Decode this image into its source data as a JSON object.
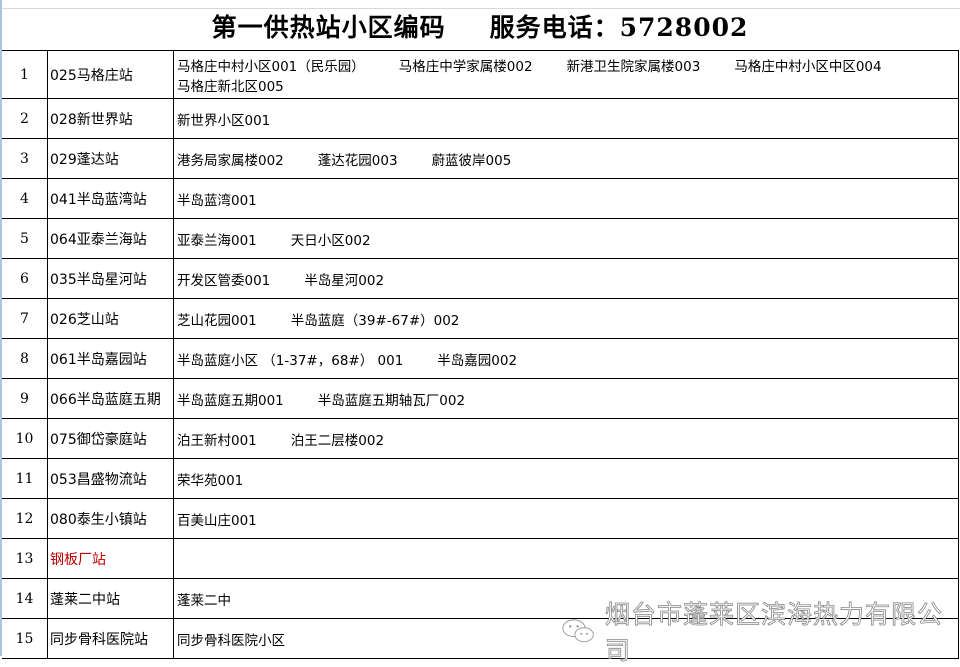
{
  "header": {
    "title": "第一供热站小区编码",
    "phone": "服务电话：5728002"
  },
  "rows": [
    {
      "no": "1",
      "station": "025马格庄站",
      "areas": [
        "马格庄中村小区001（民乐园）",
        "马格庄中学家属楼002",
        "新港卫生院家属楼003",
        "马格庄中村小区中区004",
        "马格庄新北区005"
      ]
    },
    {
      "no": "2",
      "station": "028新世界站",
      "areas": [
        "新世界小区001"
      ]
    },
    {
      "no": "3",
      "station": "029蓬达站",
      "areas": [
        "港务局家属楼002",
        "蓬达花园003",
        "蔚蓝彼岸005"
      ]
    },
    {
      "no": "4",
      "station": "041半岛蓝湾站",
      "areas": [
        "半岛蓝湾001"
      ]
    },
    {
      "no": "5",
      "station": "064亚泰兰海站",
      "areas": [
        "亚泰兰海001",
        "天日小区002"
      ]
    },
    {
      "no": "6",
      "station": "035半岛星河站",
      "areas": [
        "开发区管委001",
        "半岛星河002"
      ]
    },
    {
      "no": "7",
      "station": "026芝山站",
      "areas": [
        "芝山花园001",
        "半岛蓝庭（39#-67#）002"
      ]
    },
    {
      "no": "8",
      "station": "061半岛嘉园站",
      "areas": [
        "半岛蓝庭小区 （1-37#，68#） 001",
        "半岛嘉园002"
      ]
    },
    {
      "no": "9",
      "station": "066半岛蓝庭五期",
      "areas": [
        "半岛蓝庭五期001",
        "半岛蓝庭五期轴瓦厂002"
      ]
    },
    {
      "no": "10",
      "station": "075御岱豪庭站",
      "areas": [
        "泊王新村001",
        "泊王二层楼002"
      ]
    },
    {
      "no": "11",
      "station": "053昌盛物流站",
      "areas": [
        "荣华苑001"
      ]
    },
    {
      "no": "12",
      "station": "080泰生小镇站",
      "areas": [
        "百美山庄001"
      ]
    },
    {
      "no": "13",
      "station": "钢板厂站",
      "areas": [],
      "station_color": "#c00000"
    },
    {
      "no": "14",
      "station": "蓬莱二中站",
      "areas": [
        "蓬莱二中"
      ]
    },
    {
      "no": "15",
      "station": "同步骨科医院站",
      "areas": [
        "同步骨科医院小区"
      ]
    }
  ],
  "watermark": {
    "text": "烟台市蓬莱区滨海热力有限公司",
    "icon": "wechat-icon"
  }
}
